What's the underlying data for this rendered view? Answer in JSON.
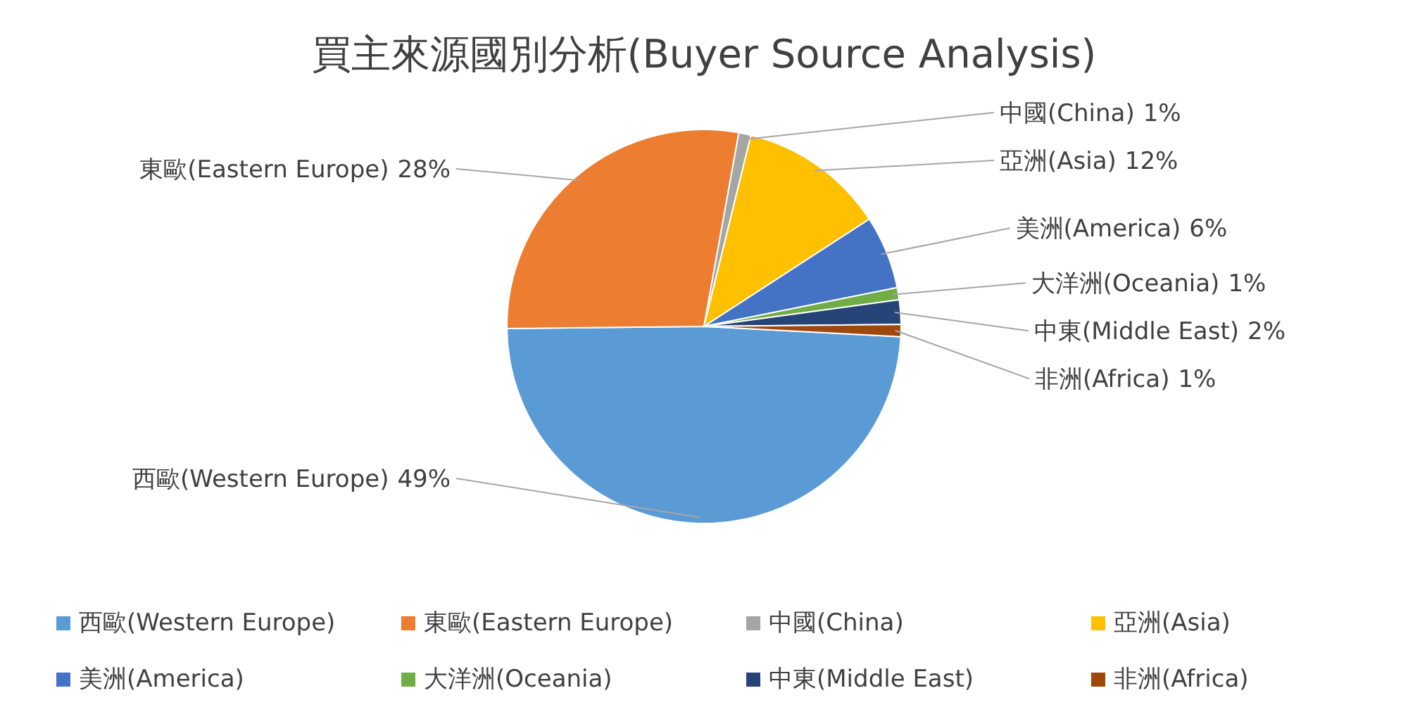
{
  "chart_data": {
    "type": "pie",
    "title": "買主來源國別分析(Buyer Source Analysis)",
    "categories": [
      "西歐(Western Europe)",
      "東歐(Eastern Europe)",
      "中國(China)",
      "亞洲(Asia)",
      "美洲(America)",
      "大洋洲(Oceania)",
      "中東(Middle East)",
      "非洲(Africa)"
    ],
    "values": [
      49,
      28,
      1,
      12,
      6,
      1,
      2,
      1
    ],
    "colors": [
      "#5b9bd5",
      "#ed7d31",
      "#a5a5a5",
      "#ffc000",
      "#4472c4",
      "#70ad47",
      "#264478",
      "#9e480e"
    ],
    "value_labels": [
      "49%",
      "28%",
      "1%",
      "12%",
      "6%",
      "1%",
      "2%",
      "1%"
    ],
    "legend": "bottom"
  }
}
